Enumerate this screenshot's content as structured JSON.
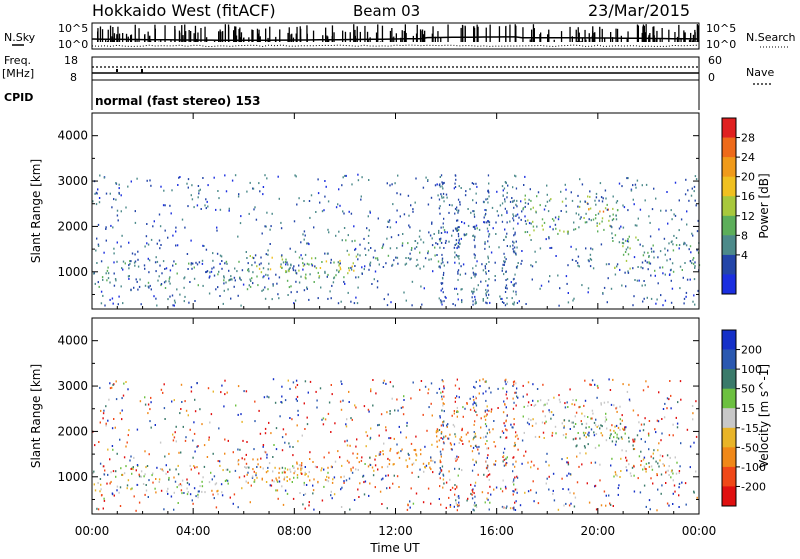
{
  "header": {
    "station": "Hokkaido West (fitACF)",
    "beam": "Beam 03",
    "date": "23/Mar/2015"
  },
  "aux_panels": {
    "nsky_label": "N.Sky",
    "nsearch_label": "N.Search",
    "nsky_tick_top": "10^5",
    "nsky_tick_bottom": "10^0",
    "freq_label_line1": "Freq.",
    "freq_label_line2": "[MHz]",
    "freq_tick_top": "18",
    "freq_tick_bottom": "8",
    "nave_label": "Nave",
    "nave_tick_top": "60",
    "nave_tick_bottom": "0",
    "cpid_label": "CPID",
    "cpid_text": "normal (fast stereo) 153"
  },
  "axes": {
    "xlabel": "Time UT",
    "ylabel": "Slant Range [km]",
    "x_ticks": [
      "00:00",
      "04:00",
      "08:00",
      "12:00",
      "16:00",
      "20:00",
      "00:00"
    ],
    "y_ticks": [
      "1000",
      "2000",
      "3000",
      "4000"
    ]
  },
  "colorbars": {
    "power": {
      "label": "Power [dB]",
      "ticks": [
        "4",
        "8",
        "12",
        "16",
        "20",
        "24",
        "28"
      ],
      "colors": [
        "#1b2fe0",
        "#2345a8",
        "#4c8a8a",
        "#5cae5a",
        "#a8c83c",
        "#f0c020",
        "#f09a1a",
        "#ee6a1a",
        "#e02020"
      ]
    },
    "velocity": {
      "label": "Velocity [m s^-1]",
      "ticks": [
        "200",
        "100",
        "50",
        "15",
        "-15",
        "-50",
        "-100",
        "-200"
      ],
      "colors": [
        "#1530c8",
        "#2a58b0",
        "#3a7a6a",
        "#6cc040",
        "#c8c8c8",
        "#e8b428",
        "#f08818",
        "#f04818",
        "#e01010"
      ]
    }
  },
  "chart_data": [
    {
      "type": "heatmap",
      "title": "Hokkaido West (fitACF) Beam 03 23/Mar/2015",
      "panel": "Power",
      "xlabel": "Time UT",
      "ylabel": "Slant Range [km]",
      "x_range_hours": [
        0,
        24
      ],
      "ylim": [
        180,
        4500
      ],
      "colorbar_label": "Power [dB]",
      "colorbar_range": [
        0,
        30
      ],
      "scatter_regions": [
        {
          "t_start": 0.0,
          "t_end": 9.5,
          "r_low": 600,
          "r_high": 1250,
          "power_db": 8
        },
        {
          "t_start": 6.0,
          "t_end": 10.5,
          "r_low": 850,
          "r_high": 1400,
          "power_db": 14
        },
        {
          "t_start": 10.0,
          "t_end": 14.0,
          "r_low": 1100,
          "r_high": 1700,
          "power_db": 8
        },
        {
          "t_start": 13.5,
          "t_end": 16.0,
          "r_low": 1600,
          "r_high": 2100,
          "power_db": 6
        },
        {
          "t_start": 17.0,
          "t_end": 21.0,
          "r_low": 1800,
          "r_high": 2700,
          "power_db": 12
        },
        {
          "t_start": 19.5,
          "t_end": 20.5,
          "r_low": 2300,
          "r_high": 2600,
          "power_db": 20
        },
        {
          "t_start": 20.5,
          "t_end": 24.0,
          "r_low": 1000,
          "r_high": 1800,
          "power_db": 10
        }
      ]
    },
    {
      "type": "heatmap",
      "panel": "Velocity",
      "xlabel": "Time UT",
      "ylabel": "Slant Range [km]",
      "x_range_hours": [
        0,
        24
      ],
      "ylim": [
        180,
        4500
      ],
      "colorbar_label": "Velocity [m s^-1]",
      "colorbar_range": [
        -200,
        200
      ],
      "scatter_regions": [
        {
          "t_start": 0.0,
          "t_end": 9.5,
          "r_low": 600,
          "r_high": 1250,
          "velocity": 0
        },
        {
          "t_start": 6.0,
          "t_end": 10.0,
          "r_low": 850,
          "r_high": 1400,
          "velocity": -30
        },
        {
          "t_start": 10.0,
          "t_end": 14.0,
          "r_low": 1100,
          "r_high": 1700,
          "velocity": -40
        },
        {
          "t_start": 13.5,
          "t_end": 16.0,
          "r_low": 1600,
          "r_high": 2100,
          "velocity": -60
        },
        {
          "t_start": 17.0,
          "t_end": 21.0,
          "r_low": 1800,
          "r_high": 2700,
          "velocity": 0
        },
        {
          "t_start": 19.0,
          "t_end": 22.0,
          "r_low": 1600,
          "r_high": 2200,
          "velocity": 40
        },
        {
          "t_start": 20.5,
          "t_end": 24.0,
          "r_low": 1000,
          "r_high": 1600,
          "velocity": 0
        }
      ]
    }
  ]
}
